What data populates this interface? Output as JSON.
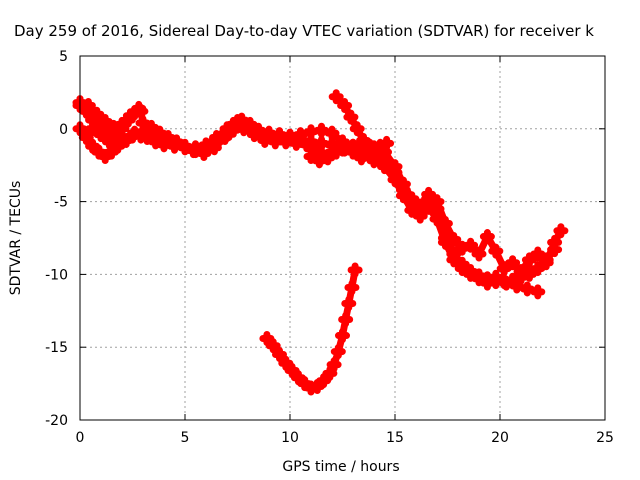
{
  "chart_data": {
    "type": "scatter",
    "title": "Day 259 of 2016, Sidereal Day-to-day VTEC variation (SDTVAR) for receiver k",
    "xlabel": "GPS time / hours",
    "ylabel": "SDTVAR / TECUs",
    "xlim": [
      0,
      25
    ],
    "ylim": [
      -20,
      5
    ],
    "xticks": [
      "0",
      "5",
      "10",
      "15",
      "20",
      "25"
    ],
    "yticks": [
      "5",
      "0",
      "-5",
      "-10",
      "-15",
      "-20"
    ],
    "grid": true,
    "legend": "none",
    "marker": "+",
    "color": "#ff0000",
    "series": [
      {
        "values": [
          [
            0.0,
            1.6
          ],
          [
            0.3,
            1.2
          ],
          [
            0.6,
            0.6
          ],
          [
            0.9,
            0.2
          ],
          [
            1.2,
            -0.3
          ],
          [
            1.5,
            -0.6
          ],
          [
            1.8,
            -0.4
          ],
          [
            2.0,
            0.0
          ],
          [
            2.3,
            0.6
          ],
          [
            2.6,
            1.1
          ],
          [
            2.9,
            1.2
          ],
          [
            3.0,
            0.4
          ],
          [
            3.4,
            0.1
          ],
          [
            3.8,
            -0.3
          ],
          [
            4.2,
            -0.6
          ],
          [
            4.6,
            -0.9
          ],
          [
            5.0,
            -1.3
          ],
          [
            5.5,
            -1.5
          ],
          [
            6.0,
            -1.4
          ],
          [
            6.5,
            -0.9
          ],
          [
            7.0,
            -0.4
          ],
          [
            7.3,
            0.3
          ],
          [
            7.7,
            0.6
          ],
          [
            8.1,
            0.3
          ],
          [
            8.5,
            -0.2
          ],
          [
            9.0,
            -0.4
          ],
          [
            9.5,
            -0.6
          ],
          [
            10.0,
            -0.7
          ],
          [
            10.5,
            -0.8
          ],
          [
            11.0,
            -0.9
          ],
          [
            11.5,
            -1.0
          ],
          [
            12.0,
            -1.1
          ],
          [
            12.5,
            -1.3
          ],
          [
            13.0,
            -1.5
          ],
          [
            13.5,
            -1.8
          ],
          [
            14.0,
            -1.4
          ],
          [
            14.5,
            -1.6
          ],
          [
            15.0,
            -2.6
          ],
          [
            15.4,
            -3.8
          ],
          [
            15.8,
            -4.8
          ],
          [
            16.2,
            -5.3
          ],
          [
            16.6,
            -4.5
          ],
          [
            17.0,
            -5.5
          ],
          [
            17.4,
            -7.5
          ],
          [
            17.8,
            -8.6
          ],
          [
            18.2,
            -9.3
          ],
          [
            18.6,
            -9.8
          ],
          [
            19.0,
            -10.1
          ],
          [
            19.4,
            -10.3
          ],
          [
            19.8,
            -10.2
          ],
          [
            20.2,
            -10.5
          ],
          [
            20.6,
            -10.4
          ],
          [
            21.0,
            -10.2
          ],
          [
            21.4,
            -10.0
          ],
          [
            21.8,
            -9.6
          ],
          [
            22.2,
            -9.0
          ],
          [
            22.6,
            -8.3
          ]
        ]
      },
      {
        "values": [
          [
            0.0,
            0.0
          ],
          [
            0.3,
            -0.6
          ],
          [
            0.6,
            -1.2
          ],
          [
            0.9,
            -1.6
          ],
          [
            1.2,
            -1.9
          ],
          [
            1.5,
            -1.6
          ],
          [
            1.8,
            -1.2
          ],
          [
            2.1,
            -0.8
          ],
          [
            2.5,
            -0.5
          ],
          [
            2.9,
            -0.5
          ],
          [
            3.2,
            -0.6
          ],
          [
            3.6,
            -0.9
          ],
          [
            4.0,
            -1.1
          ],
          [
            4.5,
            -1.2
          ],
          [
            5.0,
            -1.3
          ],
          [
            5.4,
            -1.5
          ],
          [
            5.9,
            -1.7
          ],
          [
            6.4,
            -1.3
          ],
          [
            6.9,
            -0.6
          ],
          [
            7.3,
            -0.1
          ],
          [
            7.8,
            0.0
          ],
          [
            8.3,
            -0.4
          ],
          [
            8.8,
            -0.8
          ],
          [
            9.3,
            -0.9
          ],
          [
            9.8,
            -0.9
          ],
          [
            10.3,
            -1.0
          ],
          [
            10.8,
            -1.1
          ],
          [
            11.3,
            -1.3
          ],
          [
            11.6,
            -1.9
          ],
          [
            12.0,
            -1.6
          ],
          [
            12.5,
            -1.4
          ],
          [
            13.0,
            -1.2
          ],
          [
            13.5,
            -1.6
          ],
          [
            14.0,
            -2.2
          ],
          [
            14.5,
            -2.6
          ],
          [
            15.0,
            -3.5
          ],
          [
            15.4,
            -4.6
          ],
          [
            15.8,
            -5.6
          ],
          [
            16.2,
            -6.0
          ],
          [
            16.6,
            -5.4
          ],
          [
            17.0,
            -6.2
          ],
          [
            17.4,
            -7.8
          ],
          [
            17.8,
            -9.0
          ],
          [
            18.2,
            -9.6
          ],
          [
            18.6,
            -10.0
          ],
          [
            19.0,
            -10.3
          ],
          [
            19.4,
            -10.6
          ],
          [
            19.8,
            -10.5
          ],
          [
            20.3,
            -10.6
          ],
          [
            20.8,
            -10.8
          ],
          [
            21.3,
            -11.0
          ],
          [
            21.8,
            -11.2
          ]
        ]
      },
      {
        "values": [
          [
            0.6,
            0.0
          ],
          [
            1.0,
            -0.4
          ],
          [
            1.4,
            -0.9
          ],
          [
            1.8,
            -1.1
          ],
          [
            2.2,
            -0.8
          ],
          [
            2.6,
            -0.3
          ],
          [
            3.0,
            -0.2
          ],
          [
            3.5,
            -0.5
          ],
          [
            4.0,
            -0.8
          ],
          [
            4.5,
            -1.0
          ],
          [
            5.0,
            -1.2
          ],
          [
            5.5,
            -1.3
          ],
          [
            6.0,
            -1.1
          ],
          [
            6.5,
            -0.6
          ],
          [
            7.0,
            0.0
          ],
          [
            7.5,
            0.5
          ],
          [
            8.0,
            0.2
          ],
          [
            8.5,
            -0.1
          ],
          [
            9.0,
            -0.3
          ],
          [
            9.5,
            -0.4
          ],
          [
            10.0,
            -0.5
          ],
          [
            10.5,
            -0.4
          ],
          [
            11.0,
            -0.2
          ],
          [
            11.5,
            -0.1
          ],
          [
            12.0,
            -0.3
          ],
          [
            12.5,
            -0.9
          ],
          [
            13.0,
            -1.2
          ],
          [
            13.5,
            -1.0
          ],
          [
            14.0,
            -1.3
          ],
          [
            14.5,
            -2.0
          ],
          [
            15.0,
            -3.0
          ],
          [
            15.4,
            -4.2
          ],
          [
            15.8,
            -5.0
          ],
          [
            16.2,
            -5.8
          ],
          [
            16.6,
            -4.8
          ],
          [
            17.0,
            -5.0
          ],
          [
            17.4,
            -6.5
          ],
          [
            17.8,
            -7.6
          ],
          [
            18.2,
            -8.2
          ],
          [
            18.6,
            -8.0
          ],
          [
            19.0,
            -8.6
          ],
          [
            19.4,
            -7.4
          ],
          [
            19.8,
            -8.4
          ],
          [
            20.2,
            -9.6
          ],
          [
            20.6,
            -9.2
          ],
          [
            21.0,
            -9.8
          ],
          [
            21.4,
            -9.0
          ],
          [
            21.8,
            -8.6
          ],
          [
            22.2,
            -9.2
          ],
          [
            22.6,
            -7.8
          ],
          [
            22.9,
            -7.0
          ]
        ]
      },
      {
        "values": [
          [
            12.2,
            2.2
          ],
          [
            12.6,
            1.6
          ],
          [
            12.9,
            0.8
          ],
          [
            13.2,
            0.0
          ],
          [
            13.5,
            -0.8
          ],
          [
            13.8,
            -1.2
          ],
          [
            14.0,
            -1.6
          ],
          [
            14.3,
            -1.2
          ],
          [
            14.6,
            -1.0
          ]
        ]
      },
      {
        "values": [
          [
            11.0,
            -1.9
          ],
          [
            11.4,
            -2.2
          ],
          [
            11.8,
            -2.0
          ],
          [
            12.2,
            -1.6
          ],
          [
            12.6,
            -1.4
          ],
          [
            13.0,
            -1.6
          ],
          [
            13.4,
            -2.0
          ],
          [
            13.8,
            -1.8
          ],
          [
            14.2,
            -1.4
          ]
        ]
      },
      {
        "values": [
          [
            8.9,
            -14.4
          ],
          [
            9.2,
            -14.9
          ],
          [
            9.5,
            -15.5
          ],
          [
            9.8,
            -16.1
          ],
          [
            10.1,
            -16.6
          ],
          [
            10.4,
            -17.1
          ],
          [
            10.7,
            -17.5
          ],
          [
            11.0,
            -17.8
          ],
          [
            11.3,
            -17.7
          ],
          [
            11.6,
            -17.3
          ],
          [
            11.9,
            -16.8
          ],
          [
            12.1,
            -16.2
          ],
          [
            12.3,
            -15.3
          ],
          [
            12.5,
            -14.2
          ],
          [
            12.65,
            -13.1
          ],
          [
            12.8,
            -12.0
          ],
          [
            12.95,
            -10.9
          ],
          [
            13.1,
            -9.7
          ]
        ]
      },
      {
        "values": [
          [
            0.0,
            1.8
          ],
          [
            0.4,
            1.6
          ],
          [
            0.8,
            1.0
          ],
          [
            1.2,
            0.5
          ],
          [
            1.6,
            0.1
          ],
          [
            2.0,
            0.3
          ],
          [
            2.4,
            0.9
          ],
          [
            2.8,
            1.4
          ]
        ]
      }
    ]
  }
}
